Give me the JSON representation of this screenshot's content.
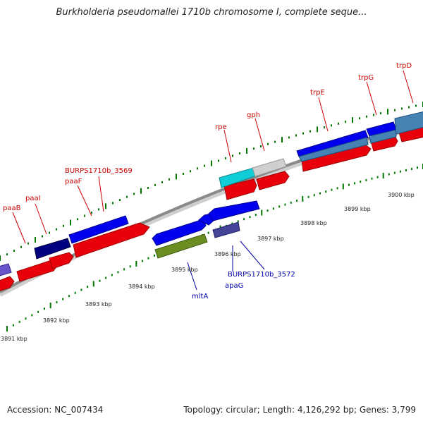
{
  "title": "Burkholderia pseudomallei 1710b chromosome I, complete seque...",
  "footer": {
    "accession": "Accession: NC_007434",
    "summary": "Topology: circular; Length: 4,126,292 bp; Genes: 3,799"
  },
  "colors": {
    "forward_gene": "#0000ff",
    "reverse_gene": "#ff0000",
    "forward_label": "#0000aa",
    "reverse_label": "#cc0000",
    "backbone": "#888888",
    "tick": "#007700"
  },
  "kbp_labels": [
    "3891 kbp",
    "3892 kbp",
    "3893 kbp",
    "3894 kbp",
    "3895 kbp",
    "3896 kbp",
    "3897 kbp",
    "3898 kbp",
    "3899 kbp",
    "3900 kbp"
  ],
  "gene_labels_top": [
    "paaB",
    "paaI",
    "BURPS1710b_3569",
    "paaF",
    "rpe",
    "gph",
    "trpE",
    "trpG",
    "trpD"
  ],
  "gene_labels_bottom": [
    "mltA",
    "BURPS1710b_3572",
    "apaG"
  ]
}
